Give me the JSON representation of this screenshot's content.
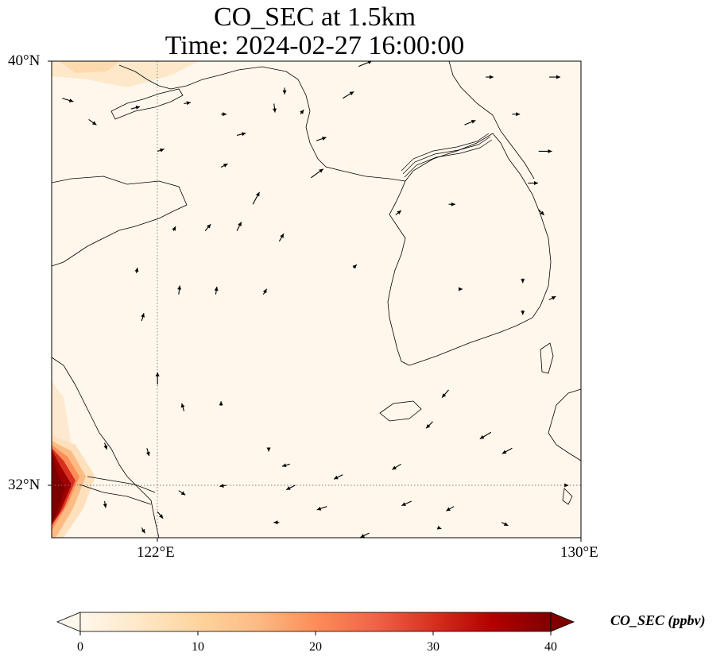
{
  "title_line1": "CO_SEC at 1.5km",
  "title_line2": "Time: 2024-02-27 16:00:00",
  "lat_labels": [
    "40°N",
    "32°N"
  ],
  "lon_labels": [
    "122°E",
    "130°E"
  ],
  "map_extent": {
    "lon_min": 120,
    "lon_max": 130,
    "lat_min": 31,
    "lat_max": 40
  },
  "gridlines": {
    "lon": [
      122
    ],
    "lat": [
      32
    ]
  },
  "colorbar": {
    "label": "CO_SEC (ppbv)",
    "ticks": [
      "0",
      "10",
      "20",
      "30",
      "40"
    ],
    "tick_values": [
      0,
      10,
      20,
      30,
      40
    ],
    "range": [
      0,
      40
    ],
    "colormap": "OrRd",
    "extend": "both"
  },
  "colors": {
    "background": "#fff7ec",
    "max": "#7f0000"
  },
  "wind_vectors": [
    {
      "lon": 120.2,
      "lat": 39.3,
      "u": 1,
      "v": -0.3
    },
    {
      "lon": 120.7,
      "lat": 38.9,
      "u": 0.7,
      "v": -0.5
    },
    {
      "lon": 121.5,
      "lat": 39.1,
      "u": 0.8,
      "v": 0.2
    },
    {
      "lon": 122.5,
      "lat": 39.2,
      "u": 0.6,
      "v": 0.1
    },
    {
      "lon": 123.2,
      "lat": 39.0,
      "u": 0.5,
      "v": 0
    },
    {
      "lon": 123.5,
      "lat": 38.6,
      "u": 0.8,
      "v": 0.2
    },
    {
      "lon": 124.2,
      "lat": 39.2,
      "u": 0.1,
      "v": -0.8
    },
    {
      "lon": 124.4,
      "lat": 39.5,
      "u": 0,
      "v": -0.6
    },
    {
      "lon": 124.7,
      "lat": 39.0,
      "u": 0.3,
      "v": 0.4
    },
    {
      "lon": 125.5,
      "lat": 39.3,
      "u": 1,
      "v": 0.6
    },
    {
      "lon": 125.8,
      "lat": 39.9,
      "u": 1.2,
      "v": 0.5
    },
    {
      "lon": 128.2,
      "lat": 39.7,
      "u": 0.7,
      "v": 0
    },
    {
      "lon": 129.4,
      "lat": 39.7,
      "u": 1,
      "v": 0
    },
    {
      "lon": 128.7,
      "lat": 39.0,
      "u": 0.7,
      "v": 0
    },
    {
      "lon": 127.8,
      "lat": 38.8,
      "u": 1,
      "v": 0.4
    },
    {
      "lon": 129.2,
      "lat": 38.3,
      "u": 1.2,
      "v": 0
    },
    {
      "lon": 129.0,
      "lat": 37.7,
      "u": 0.9,
      "v": 0
    },
    {
      "lon": 127.5,
      "lat": 37.3,
      "u": 0.6,
      "v": 0
    },
    {
      "lon": 129.2,
      "lat": 37.2,
      "u": 0.5,
      "v": -0.5
    },
    {
      "lon": 122.0,
      "lat": 38.3,
      "u": 0.6,
      "v": 0.2
    },
    {
      "lon": 123.2,
      "lat": 38.0,
      "u": 0.6,
      "v": 0.3
    },
    {
      "lon": 124.9,
      "lat": 37.8,
      "u": 1.1,
      "v": 0.8
    },
    {
      "lon": 125.0,
      "lat": 38.5,
      "u": 0.9,
      "v": 0.3
    },
    {
      "lon": 123.8,
      "lat": 37.3,
      "u": 0.6,
      "v": 1.1
    },
    {
      "lon": 126.5,
      "lat": 37.1,
      "u": 0.5,
      "v": 0.4
    },
    {
      "lon": 122.3,
      "lat": 36.8,
      "u": 0.2,
      "v": 0.4
    },
    {
      "lon": 122.9,
      "lat": 36.8,
      "u": 0.5,
      "v": 0.6
    },
    {
      "lon": 123.5,
      "lat": 36.8,
      "u": 0.4,
      "v": 0.8
    },
    {
      "lon": 124.3,
      "lat": 36.6,
      "u": 0.4,
      "v": 0.7
    },
    {
      "lon": 125.7,
      "lat": 36.1,
      "u": 0.3,
      "v": 0.3
    },
    {
      "lon": 121.6,
      "lat": 36.0,
      "u": 0.1,
      "v": 0.5
    },
    {
      "lon": 122.4,
      "lat": 35.6,
      "u": 0.1,
      "v": 0.8
    },
    {
      "lon": 123.1,
      "lat": 35.6,
      "u": 0.1,
      "v": 0.7
    },
    {
      "lon": 124.0,
      "lat": 35.6,
      "u": 0.3,
      "v": 0.5
    },
    {
      "lon": 121.7,
      "lat": 35.1,
      "u": 0.2,
      "v": 0.7
    },
    {
      "lon": 127.7,
      "lat": 35.7,
      "u": 0.3,
      "v": 0
    },
    {
      "lon": 128.9,
      "lat": 35.9,
      "u": 0,
      "v": -0.4
    },
    {
      "lon": 129.4,
      "lat": 35.5,
      "u": 0.6,
      "v": 0.3
    },
    {
      "lon": 128.9,
      "lat": 35.3,
      "u": 0,
      "v": -0.4
    },
    {
      "lon": 122.0,
      "lat": 33.9,
      "u": 0,
      "v": 1.1
    },
    {
      "lon": 122.5,
      "lat": 33.4,
      "u": -0.2,
      "v": 0.7
    },
    {
      "lon": 123.2,
      "lat": 33.5,
      "u": 0,
      "v": 0.4
    },
    {
      "lon": 121.0,
      "lat": 32.8,
      "u": 0.2,
      "v": -0.6
    },
    {
      "lon": 121.8,
      "lat": 32.7,
      "u": 0.2,
      "v": -0.7
    },
    {
      "lon": 127.5,
      "lat": 33.8,
      "u": -0.6,
      "v": -0.7
    },
    {
      "lon": 127.2,
      "lat": 33.2,
      "u": -0.6,
      "v": -0.6
    },
    {
      "lon": 128.3,
      "lat": 33.0,
      "u": -1,
      "v": -0.6
    },
    {
      "lon": 128.7,
      "lat": 32.7,
      "u": -0.9,
      "v": -0.5
    },
    {
      "lon": 126.6,
      "lat": 32.4,
      "u": -0.8,
      "v": -0.5
    },
    {
      "lon": 125.5,
      "lat": 32.2,
      "u": -0.8,
      "v": -0.4
    },
    {
      "lon": 124.6,
      "lat": 32.0,
      "u": -0.8,
      "v": -0.4
    },
    {
      "lon": 123.3,
      "lat": 32.0,
      "u": -0.6,
      "v": -0.1
    },
    {
      "lon": 122.4,
      "lat": 31.9,
      "u": 0.6,
      "v": -0.4
    },
    {
      "lon": 122.0,
      "lat": 31.5,
      "u": 0.5,
      "v": -0.6
    },
    {
      "lon": 121.0,
      "lat": 31.7,
      "u": 0.1,
      "v": -0.6
    },
    {
      "lon": 124.5,
      "lat": 32.4,
      "u": -0.7,
      "v": -0.2
    },
    {
      "lon": 125.2,
      "lat": 31.6,
      "u": -0.9,
      "v": -0.3
    },
    {
      "lon": 126.8,
      "lat": 31.7,
      "u": -0.9,
      "v": -0.4
    },
    {
      "lon": 127.6,
      "lat": 31.6,
      "u": -0.7,
      "v": -0.4
    },
    {
      "lon": 127.3,
      "lat": 31.2,
      "u": 0.3,
      "v": -0.1
    },
    {
      "lon": 126.0,
      "lat": 31.1,
      "u": -0.8,
      "v": -0.4
    },
    {
      "lon": 124.3,
      "lat": 31.3,
      "u": -0.5,
      "v": 0
    },
    {
      "lon": 129.7,
      "lat": 32.0,
      "u": 0.3,
      "v": 0
    },
    {
      "lon": 124.1,
      "lat": 32.7,
      "u": 0,
      "v": -0.3
    },
    {
      "lon": 121.7,
      "lat": 31.2,
      "u": 0.3,
      "v": -0.5
    },
    {
      "lon": 128.5,
      "lat": 31.3,
      "u": 0.6,
      "v": -0.3
    }
  ]
}
